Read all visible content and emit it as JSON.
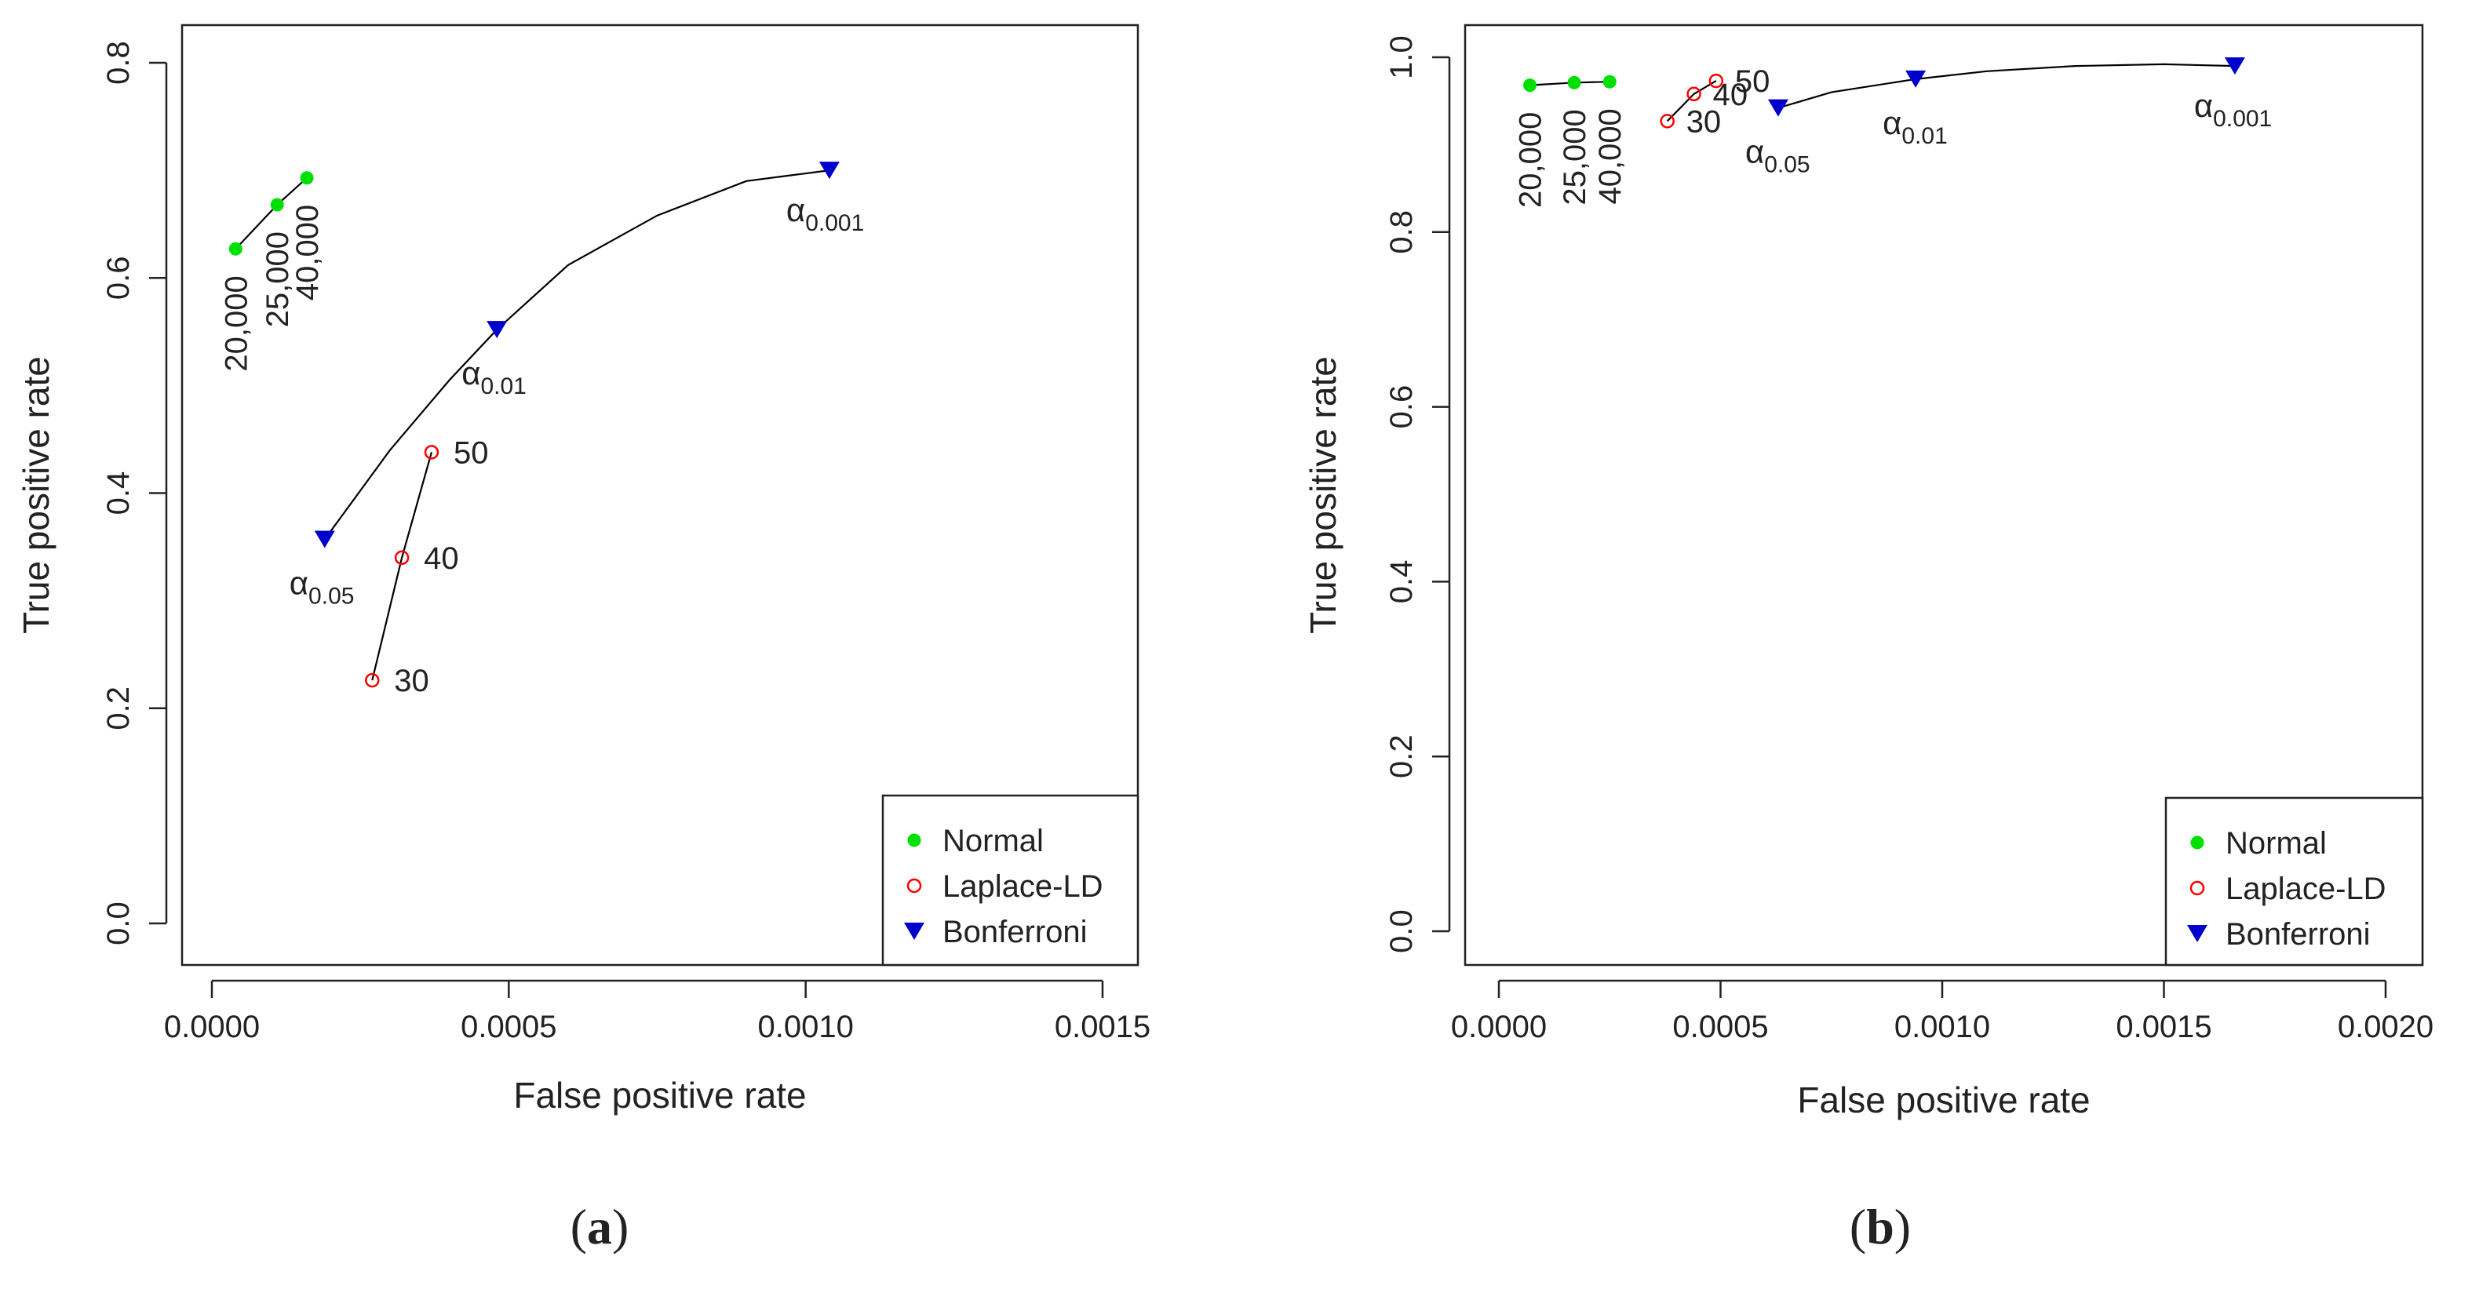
{
  "colors": {
    "normal": "#00e000",
    "laplace": "#ff0000",
    "bonferroni": "#0000cc",
    "axis": "#222222"
  },
  "chart_data": [
    {
      "type": "scatter",
      "panel_label": {
        "open": "(",
        "letter": "a",
        "close": ")"
      },
      "xlabel": "False positive rate",
      "ylabel": "True positive rate",
      "xlim": [
        0.0,
        0.0015
      ],
      "ylim": [
        0.0,
        0.8
      ],
      "xticks": [
        "0.0000",
        "0.0005",
        "0.0010",
        "0.0015"
      ],
      "xtick_values": [
        0.0,
        0.0005,
        0.001,
        0.0015
      ],
      "yticks": [
        "0.0",
        "0.2",
        "0.4",
        "0.6",
        "0.8"
      ],
      "ytick_values": [
        0.0,
        0.2,
        0.4,
        0.6,
        0.8
      ],
      "legend": {
        "position": "bottom-right",
        "entries": [
          "Normal",
          "Laplace-LD",
          "Bonferroni"
        ]
      },
      "series": [
        {
          "name": "Normal",
          "marker": "filled-circle",
          "x": [
            4e-05,
            0.00011,
            0.00016
          ],
          "y": [
            0.627,
            0.668,
            0.693
          ],
          "labels": [
            "20,000",
            "25,000",
            "40,000"
          ]
        },
        {
          "name": "Laplace-LD",
          "marker": "open-circle",
          "x": [
            0.00027,
            0.00032,
            0.00037
          ],
          "y": [
            0.226,
            0.34,
            0.438
          ],
          "labels": [
            "30",
            "40",
            "50"
          ]
        },
        {
          "name": "Bonferroni",
          "marker": "down-triangle",
          "x": [
            0.00019,
            0.00048,
            0.00104
          ],
          "y": [
            0.357,
            0.552,
            0.7
          ],
          "alpha_symbol": "α",
          "labels": [
            "0.05",
            "0.01",
            "0.001"
          ],
          "curve_x": [
            0.00019,
            0.0003,
            0.0004,
            0.00048,
            0.0006,
            0.00075,
            0.0009,
            0.00104
          ],
          "curve_y": [
            0.357,
            0.44,
            0.505,
            0.552,
            0.612,
            0.658,
            0.69,
            0.7
          ]
        }
      ]
    },
    {
      "type": "scatter",
      "panel_label": {
        "open": "(",
        "letter": "b",
        "close": ")"
      },
      "xlabel": "False positive rate",
      "ylabel": "True positive rate",
      "xlim": [
        0.0,
        0.002
      ],
      "ylim": [
        0.0,
        1.0
      ],
      "xticks": [
        "0.0000",
        "0.0005",
        "0.0010",
        "0.0015",
        "0.0020"
      ],
      "xtick_values": [
        0.0,
        0.0005,
        0.001,
        0.0015,
        0.002
      ],
      "yticks": [
        "0.0",
        "0.2",
        "0.4",
        "0.6",
        "0.8",
        "1.0"
      ],
      "ytick_values": [
        0.0,
        0.2,
        0.4,
        0.6,
        0.8,
        1.0
      ],
      "legend": {
        "position": "bottom-right",
        "entries": [
          "Normal",
          "Laplace-LD",
          "Bonferroni"
        ]
      },
      "series": [
        {
          "name": "Normal",
          "marker": "filled-circle",
          "x": [
            7e-05,
            0.00017,
            0.00025
          ],
          "y": [
            0.968,
            0.971,
            0.972
          ],
          "labels": [
            "20,000",
            "25,000",
            "40,000"
          ]
        },
        {
          "name": "Laplace-LD",
          "marker": "open-circle",
          "x": [
            0.00038,
            0.00044,
            0.00049
          ],
          "y": [
            0.927,
            0.958,
            0.973
          ],
          "labels": [
            "30",
            "40",
            "50"
          ]
        },
        {
          "name": "Bonferroni",
          "marker": "down-triangle",
          "x": [
            0.00063,
            0.00094,
            0.00166
          ],
          "y": [
            0.942,
            0.975,
            0.99
          ],
          "alpha_symbol": "α",
          "labels": [
            "0.05",
            "0.01",
            "0.001"
          ],
          "curve_x": [
            0.00063,
            0.00075,
            0.00094,
            0.0011,
            0.0013,
            0.0015,
            0.00166
          ],
          "curve_y": [
            0.942,
            0.96,
            0.975,
            0.984,
            0.99,
            0.992,
            0.99
          ]
        }
      ]
    }
  ]
}
